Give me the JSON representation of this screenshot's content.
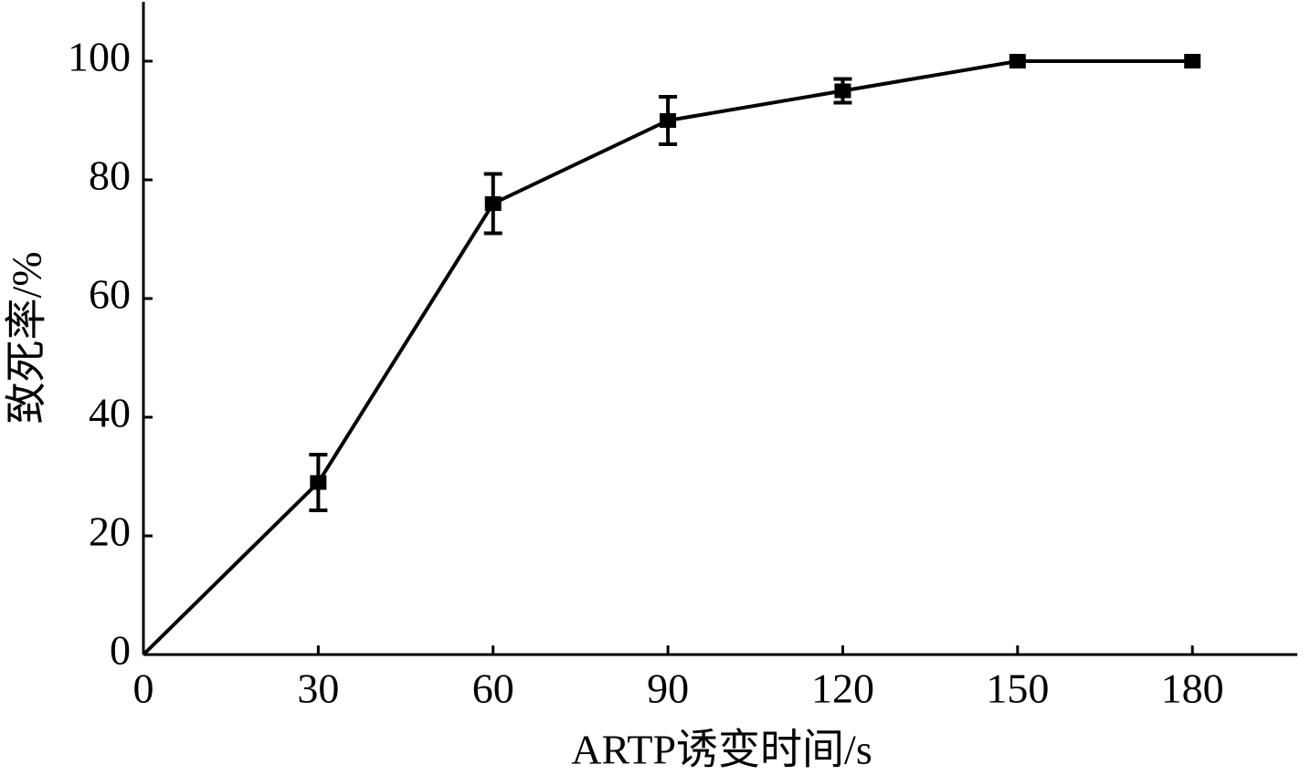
{
  "chart_data": {
    "type": "line",
    "xlabel": "ARTP诱变时间/s",
    "ylabel": "致死率/%",
    "x": [
      0,
      30,
      60,
      90,
      120,
      150,
      180
    ],
    "values": [
      0,
      29,
      76,
      90,
      95,
      100,
      100
    ],
    "errors": [
      null,
      4.7,
      5,
      4,
      2,
      null,
      null
    ],
    "color": "#000000",
    "xlim": [
      0,
      198
    ],
    "ylim": [
      0,
      110
    ],
    "xticks": [
      0,
      30,
      60,
      90,
      120,
      150,
      180
    ],
    "yticks": [
      0,
      20,
      40,
      60,
      80,
      100
    ]
  }
}
